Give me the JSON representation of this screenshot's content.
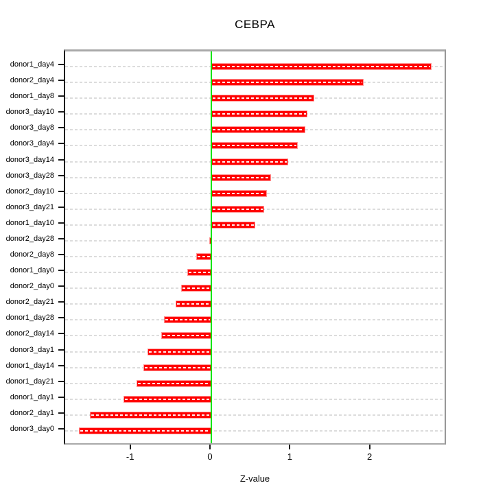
{
  "chart_data": {
    "type": "bar",
    "orientation": "horizontal",
    "title": "CEBPA",
    "xlabel": "Z-value",
    "ylabel": "",
    "categories": [
      "donor1_day4",
      "donor2_day4",
      "donor1_day8",
      "donor3_day10",
      "donor3_day8",
      "donor3_day4",
      "donor3_day14",
      "donor3_day28",
      "donor2_day10",
      "donor3_day21",
      "donor1_day10",
      "donor2_day28",
      "donor2_day8",
      "donor1_day0",
      "donor2_day0",
      "donor2_day21",
      "donor1_day28",
      "donor2_day14",
      "donor3_day1",
      "donor1_day14",
      "donor1_day21",
      "donor1_day1",
      "donor2_day1",
      "donor3_day0"
    ],
    "values": [
      2.76,
      1.91,
      1.29,
      1.2,
      1.18,
      1.08,
      0.96,
      0.75,
      0.7,
      0.66,
      0.55,
      -0.03,
      -0.19,
      -0.3,
      -0.38,
      -0.45,
      -0.59,
      -0.63,
      -0.8,
      -0.85,
      -0.94,
      -1.1,
      -1.52,
      -1.66
    ],
    "x_ticks": [
      -1,
      0,
      1,
      2
    ],
    "xlim": [
      -1.83,
      2.96
    ],
    "grid": "dashed-horizontal-per-row",
    "legend": "none",
    "colors": {
      "bar_fill": "#ff0000",
      "bar_edge": "#ff9292",
      "zero_line": "#00e400",
      "gridline": "#dcdcdc",
      "box_border": "#a0a0a0",
      "axis": "#000000",
      "background": "#ffffff"
    }
  }
}
